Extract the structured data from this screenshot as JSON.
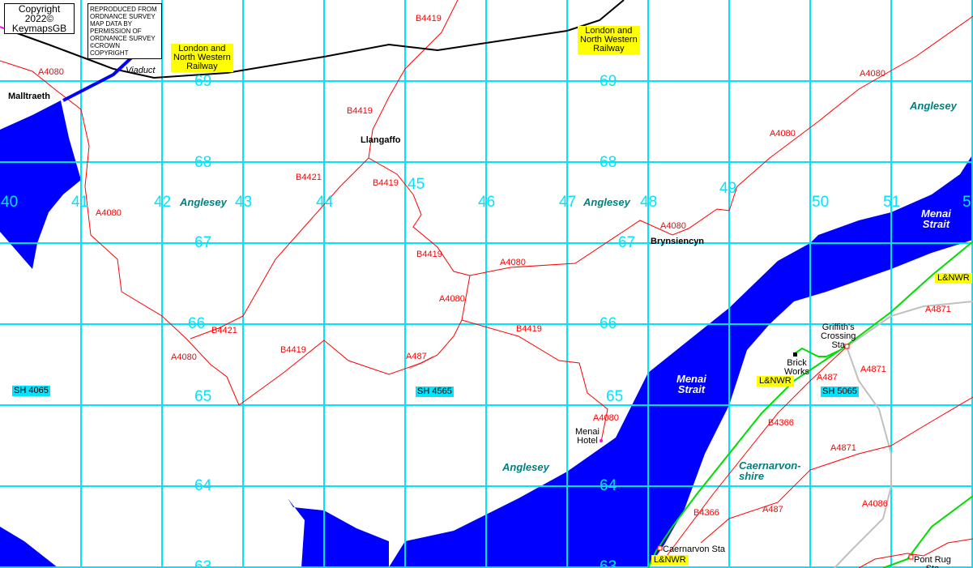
{
  "copyright": {
    "line1": "Copyright 2022©",
    "line2": "KeymapsGB"
  },
  "os_notice": [
    "REPRODUCED FROM",
    "ORDNANCE SURVEY",
    "MAP DATA BY",
    "PERMISSION OF",
    "ORDNANCE SURVEY",
    "©CROWN COPYRIGHT"
  ],
  "colors": {
    "water": "#0000ff",
    "grid": "#00e5ff",
    "road": "#ff0000",
    "railway_active": "#000000",
    "railway_green": "#00dd00",
    "road_grey": "#c0c0c0",
    "viaduct": "#0000ff"
  },
  "grid_row_labels": [
    "69",
    "69",
    "68",
    "68",
    "67",
    "67",
    "66",
    "66",
    "65",
    "65",
    "64",
    "64",
    "63",
    "63"
  ],
  "grid_col_labels": [
    "40",
    "41",
    "42",
    "43",
    "44",
    "45",
    "46",
    "47",
    "48",
    "49",
    "50",
    "51",
    "5"
  ],
  "grid_refs": [
    "SH 4065",
    "SH 4565",
    "SH 5065"
  ],
  "places": [
    "Malltraeth",
    "Llangaffo",
    "Brynsiencyn"
  ],
  "small_places": [
    "Menai\nHotel",
    "Brick\nWorks",
    "Griffith's\nCrossing\nSta",
    "Caernarvon Sta",
    "Pont Rug\nSta"
  ],
  "regions": [
    "Anglesey",
    "Anglesey",
    "Anglesey",
    "Anglesey",
    "Caernarvon-\nshire"
  ],
  "water_labels": [
    "Menai\nStrait",
    "Menai\nStrait"
  ],
  "railway_labels": [
    "London and\nNorth Western\nRailway",
    "London and\nNorth Western\nRailway",
    "L&NWR",
    "L&NWR",
    "L&NWR"
  ],
  "viaduct_label": "Viaduct",
  "road_labels": [
    "B4419",
    "A4080",
    "B4419",
    "B4421",
    "B4419",
    "A4080",
    "A4080",
    "B4419",
    "A4080",
    "A4080",
    "A4080",
    "B4419",
    "B4421",
    "A4080",
    "A4080",
    "B4419",
    "A4080",
    "A487",
    "A4871",
    "A487",
    "A4871",
    "B4366",
    "A4871",
    "B4366",
    "A487",
    "A4086"
  ]
}
